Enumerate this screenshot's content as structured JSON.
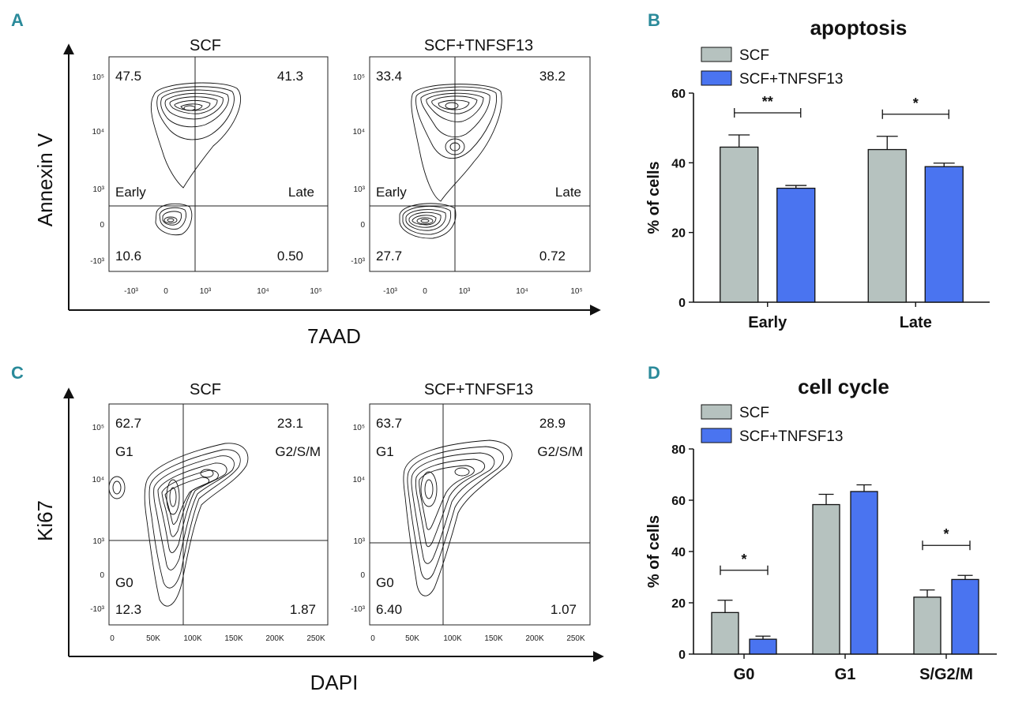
{
  "panels": {
    "A": "A",
    "B": "B",
    "C": "C",
    "D": "D"
  },
  "flow_a": {
    "y_label": "Annexin V",
    "x_label": "7AAD",
    "y_ticks": [
      "10⁵",
      "10⁴",
      "10³",
      "0",
      "-10³"
    ],
    "x_ticks": [
      "-10³",
      "0",
      "10³",
      "10⁴",
      "10⁵"
    ],
    "plots": [
      {
        "title": "SCF",
        "ul": "47.5",
        "ur": "41.3",
        "ll": "10.6",
        "lr": "0.50",
        "label_l": "Early",
        "label_r": "Late"
      },
      {
        "title": "SCF+TNFSF13",
        "ul": "33.4",
        "ur": "38.2",
        "ll": "27.7",
        "lr": "0.72",
        "label_l": "Early",
        "label_r": "Late"
      }
    ]
  },
  "flow_c": {
    "y_label": "Ki67",
    "x_label": "DAPI",
    "y_ticks": [
      "10⁵",
      "10⁴",
      "10³",
      "0",
      "-10³"
    ],
    "x_ticks": [
      "0",
      "50K",
      "100K",
      "150K",
      "200K",
      "250K"
    ],
    "plots": [
      {
        "title": "SCF",
        "ul": "62.7",
        "ur": "23.1",
        "ll": "12.3",
        "lr": "1.87",
        "label_ul": "G1",
        "label_ur": "G2/S/M",
        "label_ll": "G0"
      },
      {
        "title": "SCF+TNFSF13",
        "ul": "63.7",
        "ur": "28.9",
        "ll": "6.40",
        "lr": "1.07",
        "label_ul": "G1",
        "label_ur": "G2/S/M",
        "label_ll": "G0"
      }
    ]
  },
  "chart_data": [
    {
      "type": "bar",
      "title": "apoptosis",
      "ylabel": "% of cells",
      "xlabel": "",
      "ylim": [
        0,
        60
      ],
      "yticks": [
        0,
        20,
        40,
        60
      ],
      "categories": [
        "Early",
        "Late"
      ],
      "series": [
        {
          "name": "SCF",
          "values": [
            44.5,
            43.8
          ],
          "errors": [
            3.5,
            3.8
          ],
          "color": "#b6c2bf"
        },
        {
          "name": "SCF+TNFSF13",
          "values": [
            32.7,
            38.9
          ],
          "errors": [
            0.8,
            1.0
          ],
          "color": "#4a74f0"
        }
      ],
      "significance": [
        "**",
        "*"
      ]
    },
    {
      "type": "bar",
      "title": "cell cycle",
      "ylabel": "% of cells",
      "xlabel": "",
      "ylim": [
        0,
        80
      ],
      "yticks": [
        0,
        20,
        40,
        60,
        80
      ],
      "categories": [
        "G0",
        "G1",
        "S/G2/M"
      ],
      "series": [
        {
          "name": "SCF",
          "values": [
            16.2,
            58.3,
            22.2
          ],
          "errors": [
            4.8,
            4.0,
            2.8
          ],
          "color": "#b6c2bf"
        },
        {
          "name": "SCF+TNFSF13",
          "values": [
            5.8,
            63.4,
            29.1
          ],
          "errors": [
            1.2,
            2.6,
            1.6
          ],
          "color": "#4a74f0"
        }
      ],
      "significance": [
        "*",
        "",
        "*"
      ]
    }
  ]
}
